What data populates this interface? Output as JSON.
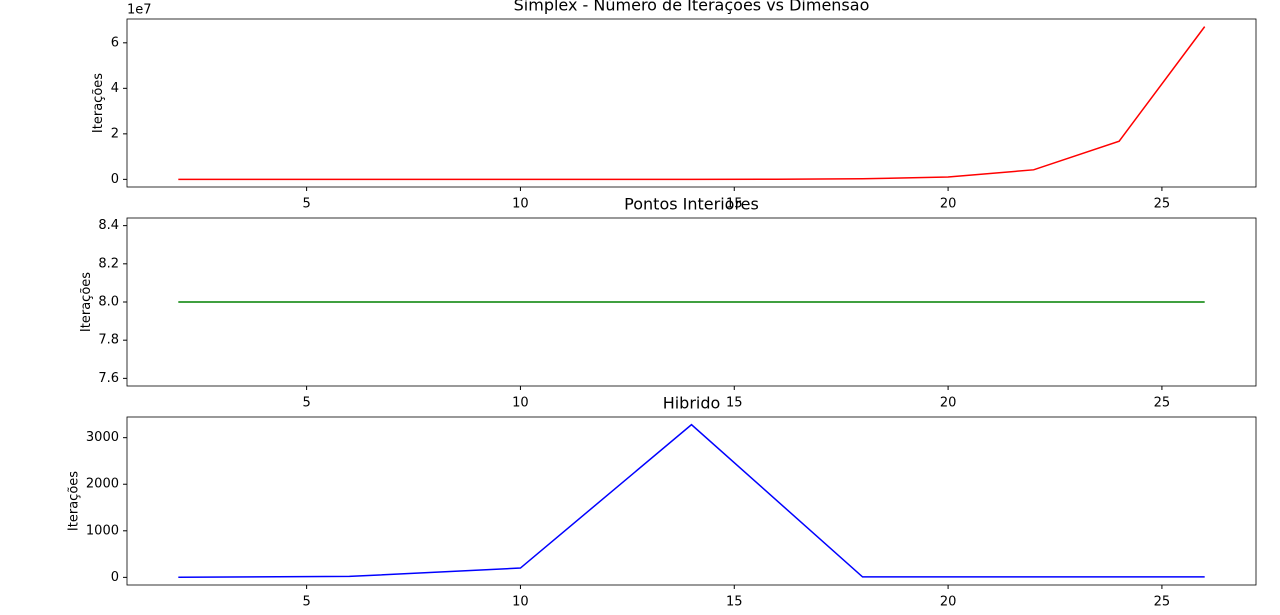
{
  "chart_data": [
    {
      "type": "line",
      "title": "Simplex - Número de Iterações vs Dimensão",
      "ylabel": "Iterações",
      "color": "#ff0000",
      "x": [
        2,
        4,
        6,
        8,
        10,
        12,
        14,
        16,
        18,
        20,
        22,
        24,
        26
      ],
      "values": [
        4,
        16,
        64,
        256,
        1024,
        4096,
        16384,
        65536,
        262144,
        1048576,
        4194304,
        16777216,
        67108864
      ],
      "xlim": [
        0.8,
        27.2
      ],
      "xticks": [
        5,
        10,
        15,
        20,
        25
      ],
      "ylim": [
        -3355000,
        70464000
      ],
      "y_offset_label": "1e7",
      "yticks": [
        {
          "value": 0,
          "label": "0"
        },
        {
          "value": 20000000,
          "label": "2"
        },
        {
          "value": 40000000,
          "label": "4"
        },
        {
          "value": 60000000,
          "label": "6"
        }
      ]
    },
    {
      "type": "line",
      "title": "Pontos Interiores",
      "ylabel": "Iterações",
      "color": "#008000",
      "x": [
        2,
        4,
        6,
        8,
        10,
        12,
        14,
        16,
        18,
        20,
        22,
        24,
        26
      ],
      "values": [
        8,
        8,
        8,
        8,
        8,
        8,
        8,
        8,
        8,
        8,
        8,
        8,
        8
      ],
      "xlim": [
        0.8,
        27.2
      ],
      "xticks": [
        5,
        10,
        15,
        20,
        25
      ],
      "ylim": [
        7.56,
        8.44
      ],
      "yticks": [
        7.6,
        7.8,
        {
          "value": 8,
          "label": "8.0"
        },
        8.2,
        8.4
      ]
    },
    {
      "type": "line",
      "title": "Hibrido",
      "ylabel": "Iterações",
      "color": "#0000ff",
      "x": [
        2,
        6,
        10,
        14,
        18,
        22,
        26
      ],
      "values": [
        2,
        20,
        200,
        3280,
        10,
        10,
        10
      ],
      "xlim": [
        0.8,
        27.2
      ],
      "xticks": [
        5,
        10,
        15,
        20,
        25
      ],
      "ylim": [
        -164,
        3444
      ],
      "yticks": [
        0,
        1000,
        2000,
        3000
      ]
    }
  ]
}
